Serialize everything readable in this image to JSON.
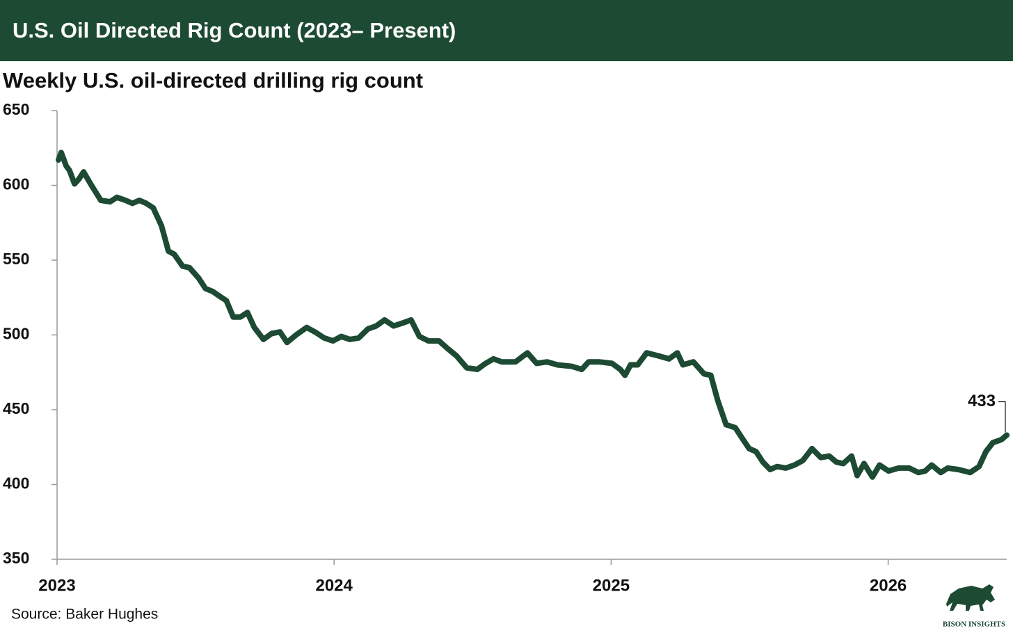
{
  "chart_data": {
    "type": "line",
    "title": "U.S. Oil Directed Rig Count (2023– Present)",
    "subtitle": "Weekly U.S. oil-directed drilling rig count",
    "source": "Source: Baker Hughes",
    "brand": "BISON INSIGHTS",
    "xlim": [
      2023,
      2026.428
    ],
    "xticks": [
      2023,
      2024,
      2025,
      2026
    ],
    "ylim": [
      350,
      650
    ],
    "yticks": [
      350,
      400,
      450,
      500,
      550,
      600,
      650
    ],
    "series": [
      {
        "color": "#1d4a33",
        "x": [
          2023.005,
          2023.015,
          2023.033,
          2023.045,
          2023.063,
          2023.078,
          2023.096,
          2023.121,
          2023.158,
          2023.191,
          2023.216,
          2023.247,
          2023.272,
          2023.297,
          2023.322,
          2023.347,
          2023.377,
          2023.402,
          2023.423,
          2023.453,
          2023.478,
          2023.511,
          2023.536,
          2023.562,
          2023.594,
          2023.611,
          2023.636,
          2023.662,
          2023.687,
          2023.712,
          2023.745,
          2023.775,
          2023.805,
          2023.83,
          2023.863,
          2023.901,
          2023.931,
          2023.964,
          2023.996,
          2024.026,
          2024.057,
          2024.089,
          2024.122,
          2024.152,
          2024.182,
          2024.215,
          2024.248,
          2024.278,
          2024.308,
          2024.341,
          2024.379,
          2024.409,
          2024.442,
          2024.479,
          2024.517,
          2024.547,
          2024.575,
          2024.605,
          2024.655,
          2024.698,
          2024.731,
          2024.769,
          2024.806,
          2024.857,
          2024.894,
          2024.919,
          2024.957,
          2025.003,
          2025.033,
          2025.05,
          2025.07,
          2025.096,
          2025.128,
          2025.171,
          2025.209,
          2025.239,
          2025.259,
          2025.297,
          2025.335,
          2025.36,
          2025.385,
          2025.415,
          2025.448,
          2025.473,
          2025.498,
          2025.523,
          2025.548,
          2025.574,
          2025.599,
          2025.631,
          2025.662,
          2025.692,
          2025.725,
          2025.757,
          2025.787,
          2025.813,
          2025.838,
          2025.868,
          2025.888,
          2025.913,
          2025.943,
          2025.969,
          2026.001,
          2026.038,
          2026.076,
          2026.109,
          2026.134,
          2026.157,
          2026.19,
          2026.215,
          2026.253,
          2026.296,
          2026.328,
          2026.353,
          2026.378,
          2026.409,
          2026.428
        ],
        "values": [
          617,
          622,
          613,
          610,
          601,
          604,
          609,
          601,
          590,
          589,
          592,
          590,
          588,
          590,
          588,
          585,
          573,
          556,
          554,
          546,
          545,
          538,
          531,
          529,
          525,
          523,
          512,
          512,
          515,
          505,
          497,
          501,
          502,
          495,
          500,
          505,
          502,
          498,
          496,
          499,
          497,
          498,
          504,
          506,
          510,
          506,
          508,
          510,
          499,
          496,
          496,
          491,
          486,
          478,
          477,
          481,
          484,
          482,
          482,
          488,
          481,
          482,
          480,
          479,
          477,
          482,
          482,
          481,
          477,
          473,
          480,
          480,
          488,
          486,
          484,
          488,
          480,
          482,
          474,
          473,
          456,
          440,
          438,
          431,
          424,
          422,
          415,
          410,
          412,
          411,
          413,
          416,
          424,
          418,
          419,
          415,
          414,
          419,
          406,
          414,
          405,
          413,
          409,
          411,
          411,
          408,
          409,
          413,
          408,
          411,
          410,
          408,
          412,
          422,
          428,
          430,
          433
        ]
      }
    ]
  }
}
